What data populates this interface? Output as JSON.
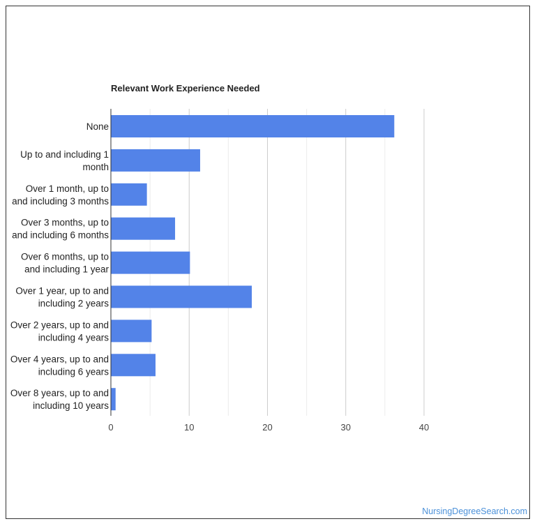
{
  "watermark": "NursingDegreeSearch.com",
  "colors": {
    "bar": "#5383e8",
    "grid": "#cccccc",
    "axis": "#333333"
  },
  "chart_data": {
    "type": "bar",
    "orientation": "horizontal",
    "title": "Relevant Work Experience Needed",
    "xlabel": "",
    "ylabel": "",
    "xlim": [
      0,
      40
    ],
    "xticks": [
      0,
      10,
      20,
      30,
      40
    ],
    "grid": true,
    "categories": [
      [
        "None"
      ],
      [
        "Up to and including 1",
        "month"
      ],
      [
        "Over 1 month, up to",
        "and including 3 months"
      ],
      [
        "Over 3 months, up to",
        "and including 6 months"
      ],
      [
        "Over 6 months, up to",
        "and including 1 year"
      ],
      [
        "Over 1 year, up to and",
        "including 2 years"
      ],
      [
        "Over 2 years, up to and",
        "including 4 years"
      ],
      [
        "Over 4 years, up to and",
        "including 6 years"
      ],
      [
        "Over 8 years, up to and",
        "including 10 years"
      ]
    ],
    "values": [
      36.2,
      11.4,
      4.6,
      8.2,
      10.1,
      18.0,
      5.2,
      5.7,
      0.6
    ]
  }
}
